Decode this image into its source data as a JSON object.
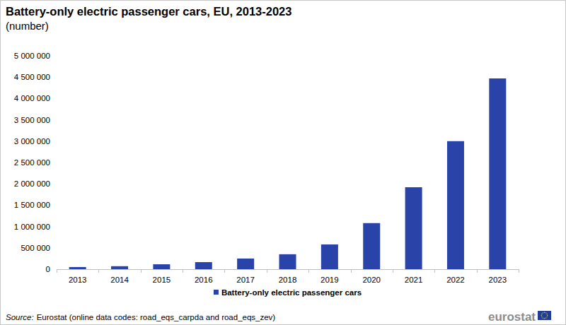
{
  "chart_data": {
    "type": "bar",
    "title": "Battery-only electric passenger cars, EU, 2013-2023",
    "subtitle": "(number)",
    "categories": [
      "2013",
      "2014",
      "2015",
      "2016",
      "2017",
      "2018",
      "2019",
      "2020",
      "2021",
      "2022",
      "2023"
    ],
    "series": [
      {
        "name": "Battery-only electric passenger cars",
        "color": "#2a43a8",
        "values": [
          50000,
          70000,
          115000,
          165000,
          250000,
          350000,
          580000,
          1080000,
          1920000,
          3000000,
          4470000
        ]
      }
    ],
    "ylim": [
      0,
      5000000
    ],
    "yticks": [
      0,
      {
        "value": 500000,
        "label": "500 000"
      },
      {
        "value": 1000000,
        "label": "1 000 000"
      },
      {
        "value": 1500000,
        "label": "1 500 000"
      },
      {
        "value": 2000000,
        "label": "2 000 000"
      },
      {
        "value": 2500000,
        "label": "2 500 000"
      },
      {
        "value": 3000000,
        "label": "3 000 000"
      },
      {
        "value": 3500000,
        "label": "3 500 000"
      },
      {
        "value": 4000000,
        "label": "4 000 000"
      },
      {
        "value": 4500000,
        "label": "4 500 000"
      },
      {
        "value": 5000000,
        "label": "5 000 000"
      }
    ],
    "grid": false,
    "legend": "bottom",
    "source_label": "Source:",
    "source": "Eurostat (online data codes: road_eqs_carpda and road_eqs_zev)",
    "logo": "eurostat"
  }
}
